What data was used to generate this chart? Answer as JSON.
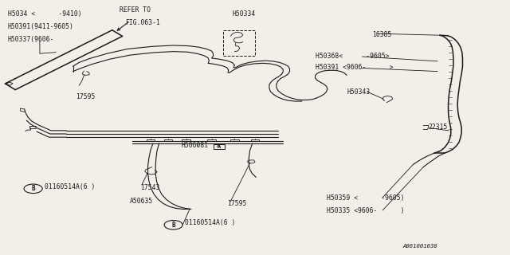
{
  "bg_color": "#f2efe9",
  "line_color": "#1a1a1a",
  "fig_id": "A061001038",
  "lw_main": 0.8,
  "lw_thin": 0.6,
  "lw_thick": 1.1,
  "fs_label": 5.8,
  "labels": {
    "H5034": [
      0.015,
      0.945,
      "H5034 <      -9410)"
    ],
    "H50391a": [
      0.015,
      0.895,
      "H50391(9411-9605)"
    ],
    "H50337": [
      0.015,
      0.845,
      "H50337(9606-"
    ],
    "refer_to": [
      0.235,
      0.96,
      "REFER TO"
    ],
    "fig063": [
      0.245,
      0.91,
      "FIG.063-1"
    ],
    "H50334": [
      0.455,
      0.945,
      "H50334"
    ],
    "lbl_17595a": [
      0.148,
      0.62,
      "17595"
    ],
    "lbl_16385": [
      0.73,
      0.865,
      "16385"
    ],
    "H50368": [
      0.618,
      0.78,
      "H50368<      -9605>"
    ],
    "H50391b": [
      0.618,
      0.735,
      "H50391 <9606-      >"
    ],
    "H50343": [
      0.68,
      0.64,
      "H50343"
    ],
    "H506081": [
      0.355,
      0.43,
      "H506081"
    ],
    "lbl_17543": [
      0.275,
      0.265,
      "17543"
    ],
    "lbl_A50635": [
      0.255,
      0.21,
      "A50635"
    ],
    "lbl_17595b": [
      0.445,
      0.2,
      "17595"
    ],
    "lbl_22315": [
      0.84,
      0.5,
      "22315"
    ],
    "H50359": [
      0.64,
      0.225,
      "H50359 <      -9605)"
    ],
    "H50335": [
      0.64,
      0.175,
      "H50335 <9606-      )"
    ],
    "fig_id": [
      0.79,
      0.028,
      "A061001038"
    ]
  }
}
